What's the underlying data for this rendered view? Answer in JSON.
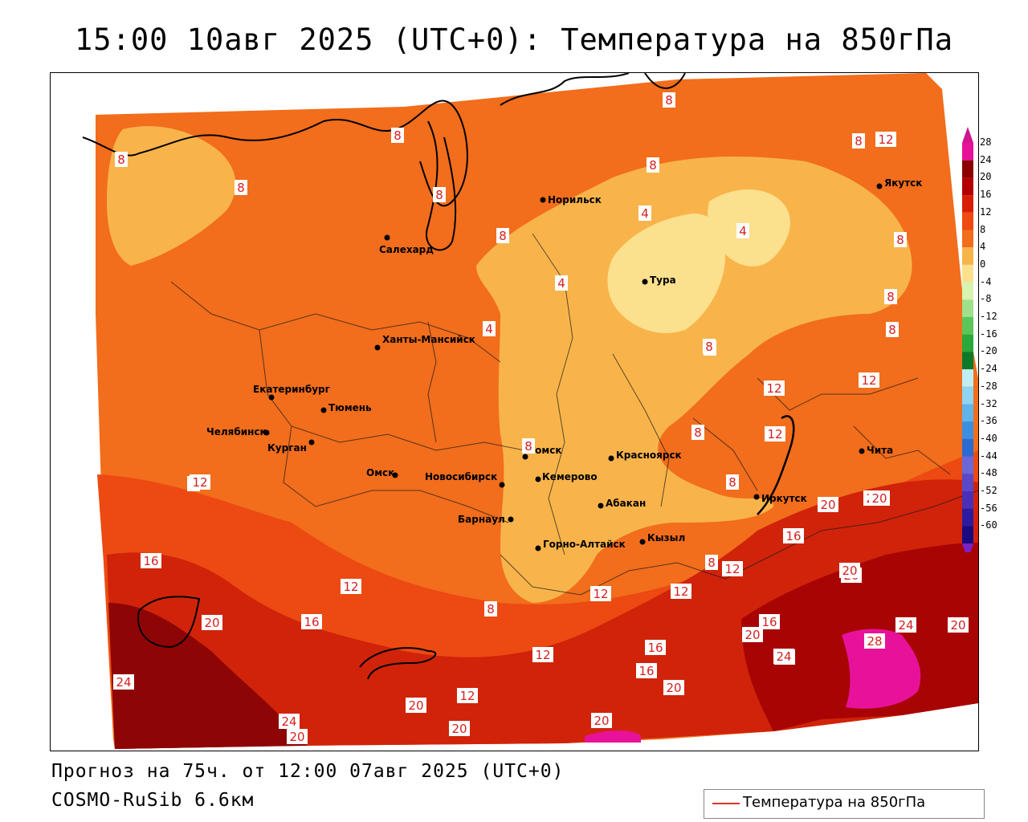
{
  "title": "15:00 10авг 2025 (UTC+0): Температура на 850гПа",
  "footer": {
    "forecast": "Прогноз на 75ч. от 12:00 07авг 2025 (UTC+0)",
    "model": "COSMO-RuSib 6.6км"
  },
  "legend": {
    "label": "Температура на 850гПа",
    "line_color": "#e03030"
  },
  "colorbar": {
    "levels": [
      {
        "value": "28",
        "color": "#e8129a"
      },
      {
        "value": "24",
        "color": "#8b0000"
      },
      {
        "value": "20",
        "color": "#b30000"
      },
      {
        "value": "16",
        "color": "#d81e05"
      },
      {
        "value": "12",
        "color": "#f04a10"
      },
      {
        "value": "8",
        "color": "#f26d1c"
      },
      {
        "value": "4",
        "color": "#f8b44a"
      },
      {
        "value": "0",
        "color": "#fbe08e"
      },
      {
        "value": "-4",
        "color": "#d8f2b0"
      },
      {
        "value": "-8",
        "color": "#9fe08a"
      },
      {
        "value": "-12",
        "color": "#5cc65a"
      },
      {
        "value": "-16",
        "color": "#2aa83a"
      },
      {
        "value": "-20",
        "color": "#0d7a2a"
      },
      {
        "value": "-24",
        "color": "#bfeff5"
      },
      {
        "value": "-28",
        "color": "#8fd4f0"
      },
      {
        "value": "-32",
        "color": "#5fb4ea"
      },
      {
        "value": "-36",
        "color": "#3b8fe0"
      },
      {
        "value": "-40",
        "color": "#2a6ad2"
      },
      {
        "value": "-44",
        "color": "#6a68d8"
      },
      {
        "value": "-48",
        "color": "#5a48c8"
      },
      {
        "value": "-52",
        "color": "#4a30b8"
      },
      {
        "value": "-56",
        "color": "#2e1aa0"
      },
      {
        "value": "-60",
        "color": "#1a0a80"
      }
    ],
    "arrow_top_color": "#d0158e",
    "arrow_bottom_color": "#7a22c8"
  },
  "cities": [
    {
      "name": "Норильск"
    },
    {
      "name": "Салехард"
    },
    {
      "name": "Якутск"
    },
    {
      "name": "Тура"
    },
    {
      "name": "Ханты-Мансийск"
    },
    {
      "name": "Екатеринбург"
    },
    {
      "name": "Тюмень"
    },
    {
      "name": "Челябинск"
    },
    {
      "name": "Курган"
    },
    {
      "name": "Омск"
    },
    {
      "name": "Новосибирск"
    },
    {
      "name": "Томск"
    },
    {
      "name": "Кемерово"
    },
    {
      "name": "Красноярск"
    },
    {
      "name": "Барнаул"
    },
    {
      "name": "Абакан"
    },
    {
      "name": "Горно-Алтайск"
    },
    {
      "name": "Кызыл"
    },
    {
      "name": "Иркутск"
    },
    {
      "name": "Чита"
    }
  ],
  "contour_labels": [
    "8",
    "8",
    "8",
    "8",
    "8",
    "8",
    "8",
    "12",
    "8",
    "4",
    "4",
    "8",
    "8",
    "4",
    "4",
    "8",
    "8",
    "8",
    "8",
    "12",
    "12",
    "8",
    "12",
    "8",
    "8",
    "12",
    "20",
    "20",
    "16",
    "16",
    "12",
    "20",
    "16",
    "12",
    "8",
    "8",
    "12",
    "12",
    "28",
    "12",
    "20",
    "16",
    "24",
    "24",
    "20",
    "20",
    "24",
    "16",
    "16",
    "24",
    "20",
    "28",
    "20",
    "24",
    "20",
    "20",
    "20",
    "12",
    "20",
    "20"
  ]
}
